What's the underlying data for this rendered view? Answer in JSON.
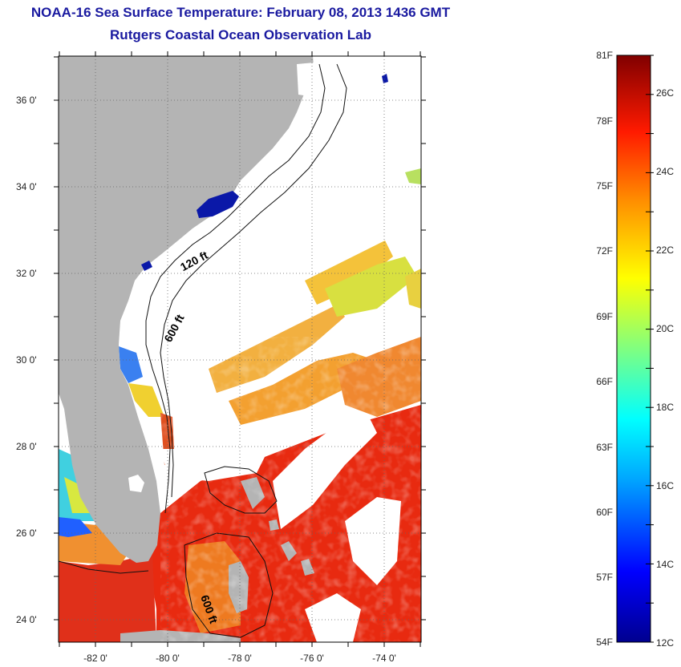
{
  "title": "NOAA-16 Sea Surface Temperature:  February 08, 2013 1436 GMT",
  "subtitle": "Rutgers Coastal Ocean Observation Lab",
  "latitude_labels": [
    "36 0'",
    "34 0'",
    "32 0'",
    "30 0'",
    "28 0'",
    "26 0'",
    "24 0'"
  ],
  "longitude_labels": [
    "-82 0'",
    "-80 0'",
    "-78 0'",
    "-76 0'",
    "-74 0'"
  ],
  "isobath_labels": [
    "120 ft",
    "600 ft",
    "600 ft"
  ],
  "colorbar": {
    "fahrenheit_labels": [
      "81F",
      "78F",
      "75F",
      "72F",
      "69F",
      "66F",
      "63F",
      "60F",
      "57F",
      "54F"
    ],
    "celsius_labels": [
      "26C",
      "24C",
      "22C",
      "20C",
      "18C",
      "16C",
      "14C",
      "12C"
    ],
    "range_celsius": [
      12,
      27
    ]
  },
  "colors": {
    "land": "#b4b4b4",
    "title": "#1a1aa0",
    "cloud": "#ffffff"
  },
  "map_extent": {
    "lon_range": [
      -83,
      -73
    ],
    "lat_range": [
      23,
      37
    ]
  }
}
